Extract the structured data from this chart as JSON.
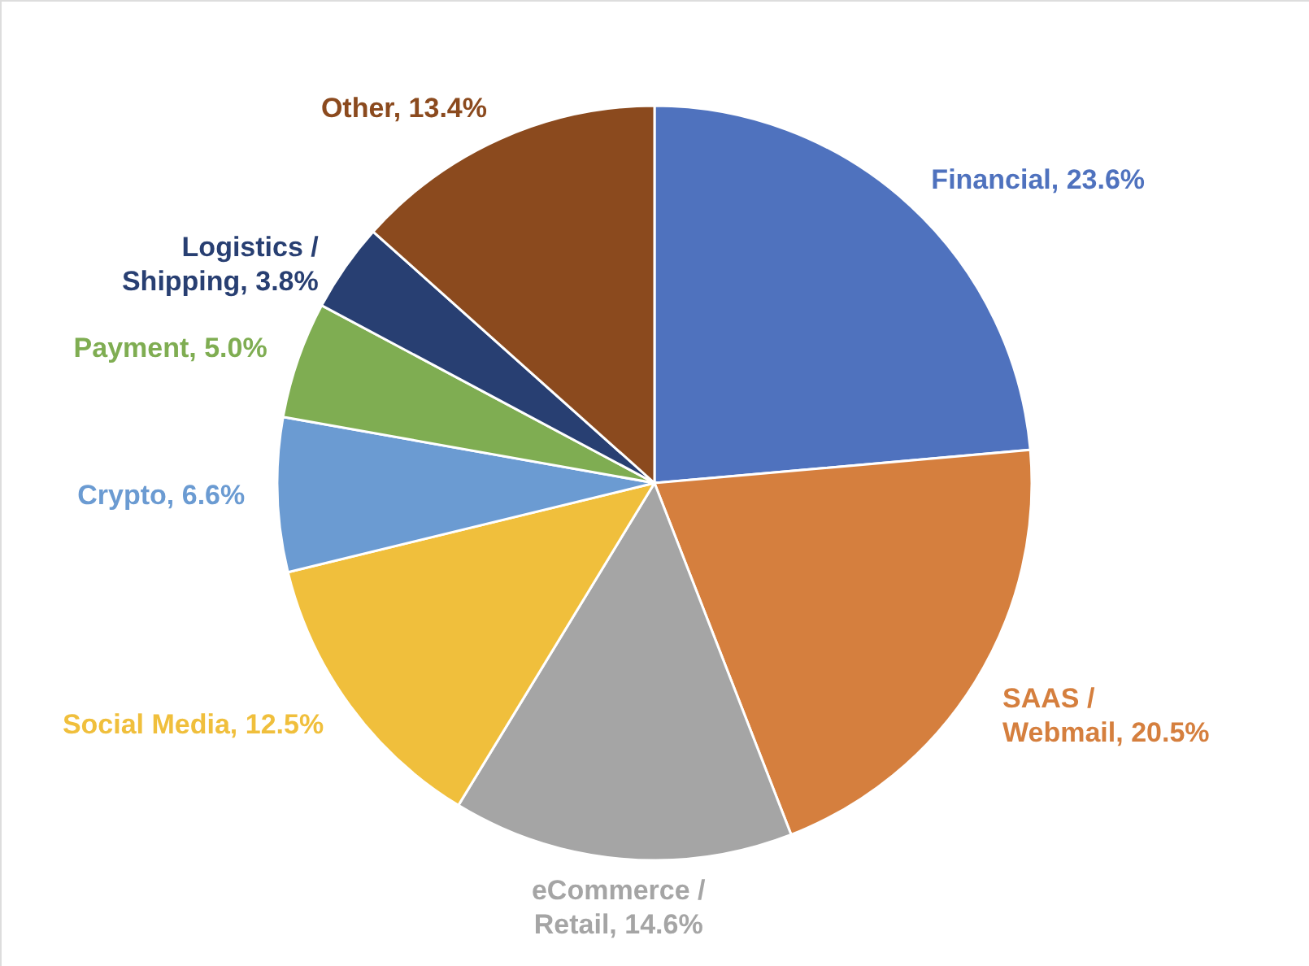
{
  "chart_data": {
    "type": "pie",
    "categories": [
      "Financial",
      "SAAS / Webmail",
      "eCommerce / Retail",
      "Social Media",
      "Crypto",
      "Payment",
      "Logistics / Shipping",
      "Other"
    ],
    "values": [
      23.6,
      20.5,
      14.6,
      12.5,
      6.6,
      5.0,
      3.8,
      13.4
    ],
    "colors": [
      "#4f72be",
      "#d57f3e",
      "#a5a5a5",
      "#f0bf3c",
      "#6b9bd2",
      "#7fad52",
      "#283f72",
      "#8b4a1e"
    ],
    "value_labels": [
      "23.6%",
      "20.5%",
      "14.6%",
      "12.5%",
      "6.6%",
      "5.0%",
      "3.8%",
      "13.4%"
    ]
  }
}
